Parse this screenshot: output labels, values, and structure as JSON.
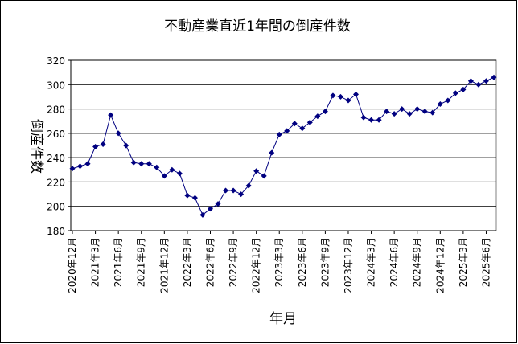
{
  "chart_data": {
    "type": "line",
    "title": "不動産業直近1年間の倒産件数",
    "x_label": "年月",
    "y_label": "倒産件数",
    "categories": [
      "2020年12月",
      null,
      null,
      "2021年3月",
      null,
      null,
      "2021年6月",
      null,
      null,
      "2021年9月",
      null,
      null,
      "2021年12月",
      null,
      null,
      "2022年3月",
      null,
      null,
      "2022年6月",
      null,
      null,
      "2022年9月",
      null,
      null,
      "2022年12月",
      null,
      null,
      "2023年3月",
      null,
      null,
      "2023年6月",
      null,
      null,
      "2023年9月",
      null,
      null,
      "2023年12月",
      null,
      null,
      "2024年3月",
      null,
      null,
      "2024年6月",
      null,
      null,
      "2024年9月",
      null,
      null,
      "2024年12月",
      null,
      null,
      "2025年3月",
      null,
      null,
      "2025年6月",
      null
    ],
    "series": [
      {
        "color": "#000080",
        "values": [
          231,
          233,
          235,
          249,
          251,
          275,
          260,
          250,
          236,
          235,
          235,
          232,
          225,
          230,
          227,
          209,
          207,
          193,
          198,
          202,
          213,
          213,
          210,
          217,
          229,
          225,
          244,
          259,
          262,
          268,
          264,
          269,
          274,
          278,
          291,
          290,
          287,
          292,
          273,
          271,
          271,
          278,
          276,
          280,
          276,
          280,
          278,
          277,
          284,
          287,
          293,
          296,
          303,
          300,
          303,
          306
        ]
      }
    ],
    "ylim": [
      180,
      320
    ],
    "yticks": [
      180,
      200,
      220,
      240,
      260,
      280,
      300,
      320
    ],
    "grid": true
  }
}
